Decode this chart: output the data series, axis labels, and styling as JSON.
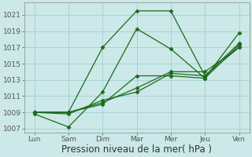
{
  "x_labels": [
    "Lun",
    "Sam",
    "Dim",
    "Mar",
    "Mer",
    "Jeu",
    "Ven"
  ],
  "x_positions": [
    0,
    1,
    2,
    3,
    4,
    5,
    6
  ],
  "line1": [
    1009.0,
    1009.0,
    1017.0,
    1021.5,
    1021.5,
    1013.5,
    1017.5
  ],
  "line2": [
    1008.8,
    1007.2,
    1011.5,
    1019.3,
    1016.8,
    1013.2,
    1018.8
  ],
  "line3": [
    1009.0,
    1009.0,
    1010.0,
    1013.5,
    1013.5,
    1013.2,
    1017.3
  ],
  "line4": [
    1009.0,
    1009.0,
    1010.2,
    1012.0,
    1014.0,
    1014.0,
    1017.0
  ],
  "line5": [
    1009.0,
    1008.8,
    1010.5,
    1011.5,
    1013.8,
    1013.5,
    1017.0
  ],
  "ylim": [
    1006.5,
    1022.5
  ],
  "yticks": [
    1007,
    1009,
    1011,
    1013,
    1015,
    1017,
    1019,
    1021
  ],
  "xlabel": "Pression niveau de la mer( hPa )",
  "line_color": "#1a6b1a",
  "bg_color": "#cce8e8",
  "grid_color": "#99cccc",
  "marker": "D",
  "markersize": 2.5,
  "linewidth": 0.9,
  "xlabel_fontsize": 8.5,
  "tick_fontsize": 6.5
}
